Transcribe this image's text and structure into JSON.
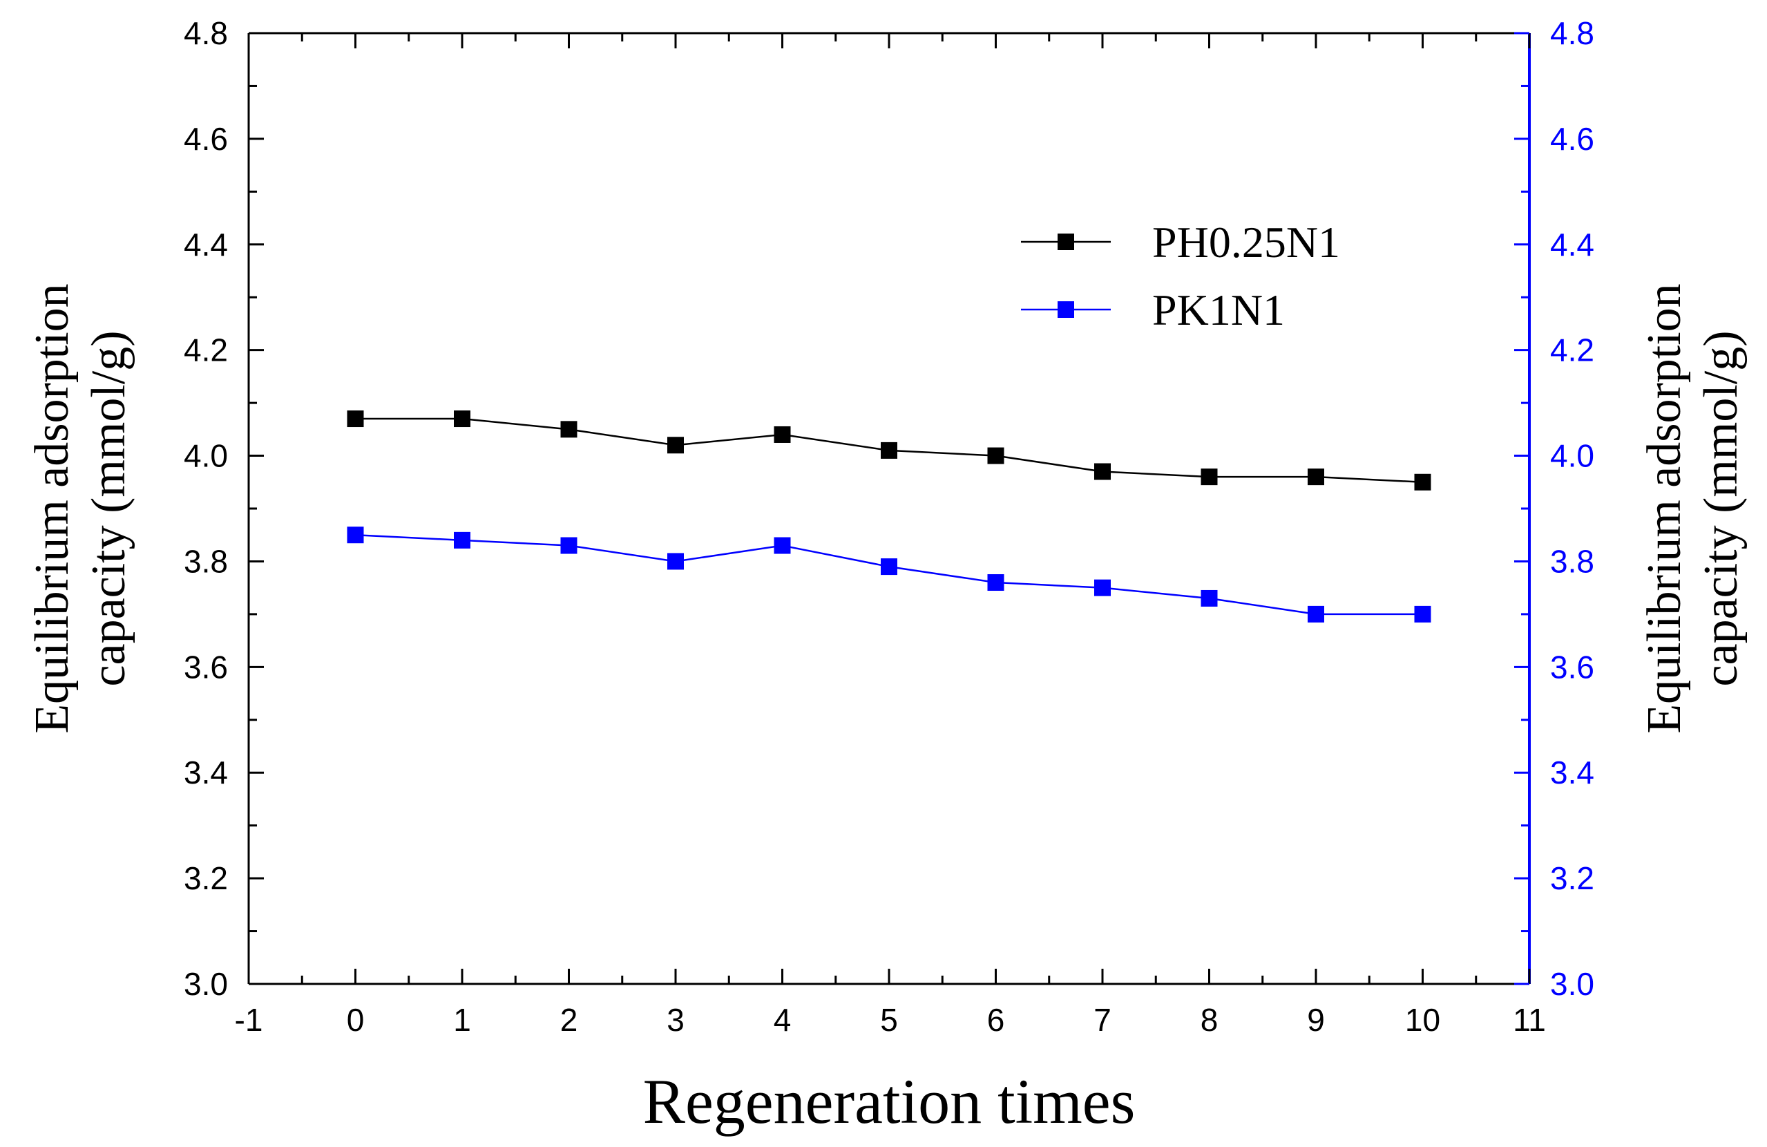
{
  "chart_data": {
    "type": "line",
    "xlabel": "Regeneration times",
    "ylabel_left": "Equilibrium adsorption capacity (mmol/g)",
    "ylabel_right": "Equilibrium adsorption capacity (mmol/g)",
    "xlim": [
      -1,
      11
    ],
    "ylim": [
      3.0,
      4.8
    ],
    "x_ticks": [
      "-1",
      "0",
      "1",
      "2",
      "3",
      "4",
      "5",
      "6",
      "7",
      "8",
      "9",
      "10",
      "11"
    ],
    "y_ticks": [
      "3.0",
      "3.2",
      "3.4",
      "3.6",
      "3.8",
      "4.0",
      "4.2",
      "4.4",
      "4.6",
      "4.8"
    ],
    "x": [
      0,
      1,
      2,
      3,
      4,
      5,
      6,
      7,
      8,
      9,
      10
    ],
    "series": [
      {
        "name": "PH0.25N1",
        "color": "#000000",
        "axis": "left",
        "values": [
          4.07,
          4.07,
          4.05,
          4.02,
          4.04,
          4.01,
          4.0,
          3.97,
          3.96,
          3.96,
          3.95
        ]
      },
      {
        "name": "PK1N1",
        "color": "#0000ff",
        "axis": "right",
        "values": [
          3.85,
          3.84,
          3.83,
          3.8,
          3.83,
          3.79,
          3.76,
          3.75,
          3.73,
          3.7,
          3.7
        ]
      }
    ],
    "legend_position": "top-right",
    "right_axis_color": "#0000ff",
    "marker": "square"
  }
}
